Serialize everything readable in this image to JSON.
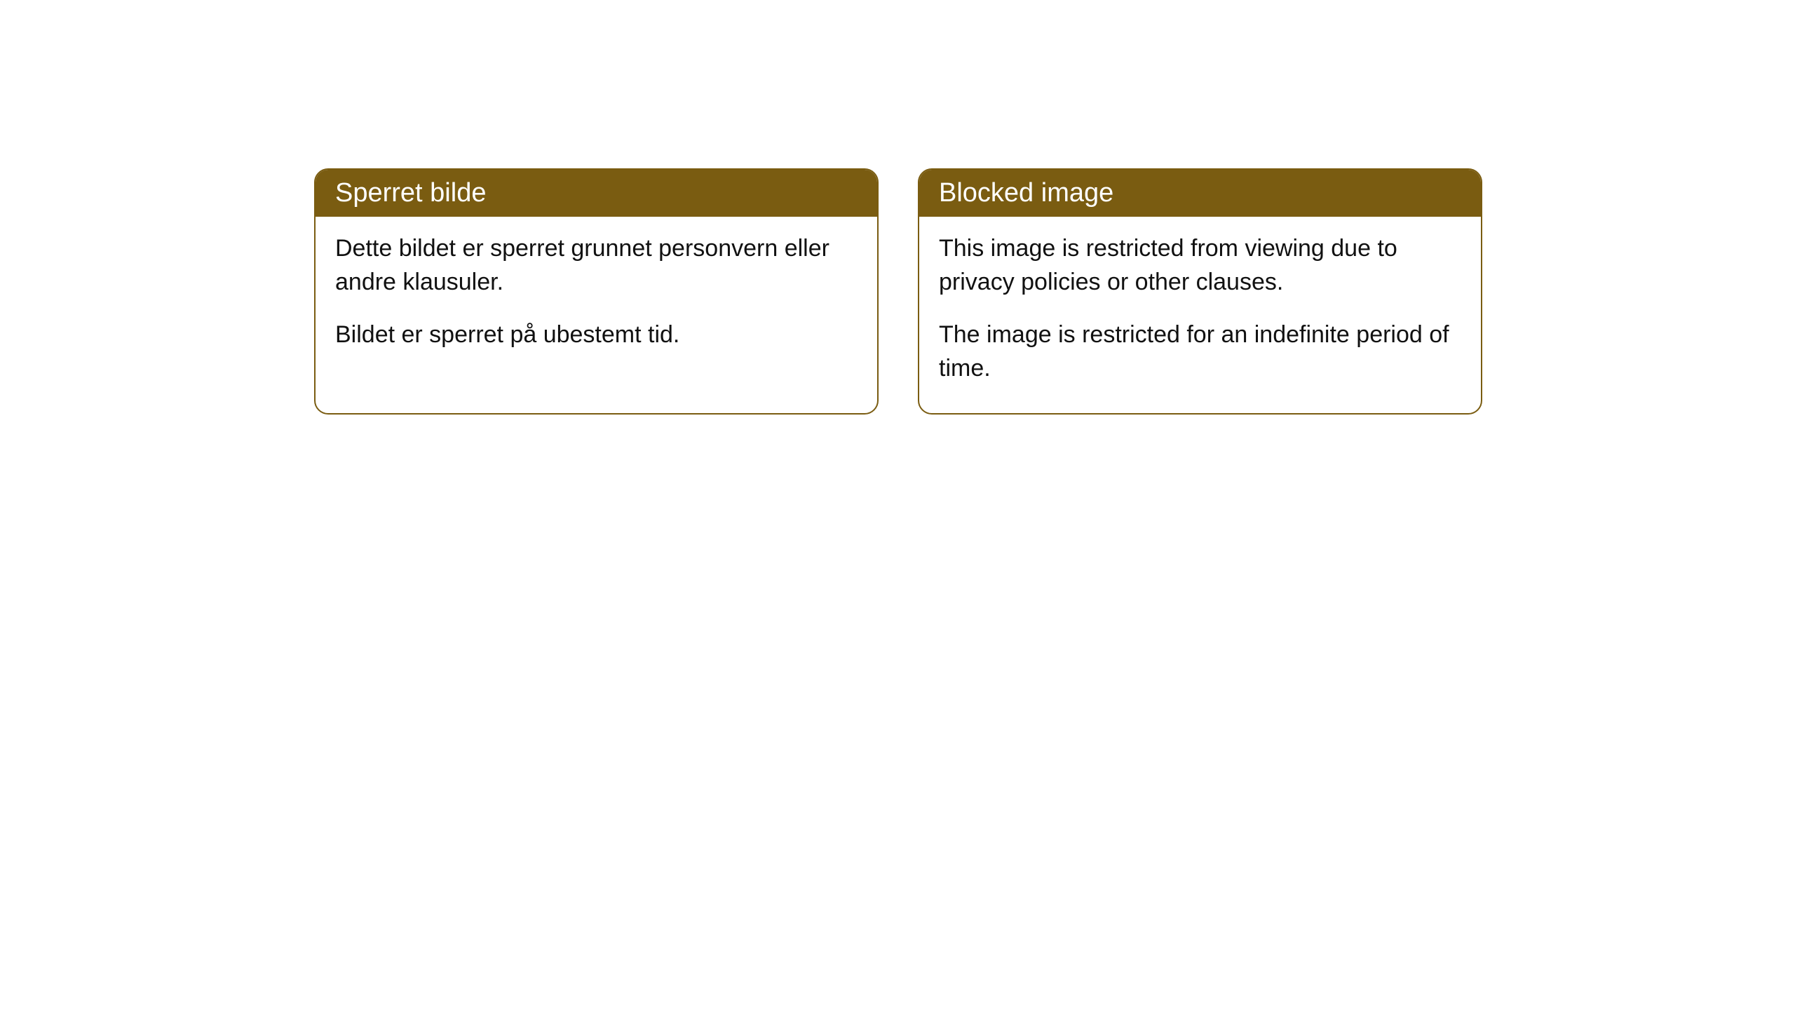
{
  "cards": [
    {
      "title": "Sperret bilde",
      "paragraph1": "Dette bildet er sperret grunnet personvern eller andre klausuler.",
      "paragraph2": "Bildet er sperret på ubestemt tid."
    },
    {
      "title": "Blocked image",
      "paragraph1": "This image is restricted from viewing due to privacy policies or other clauses.",
      "paragraph2": "The image is restricted for an indefinite period of time."
    }
  ],
  "styling": {
    "card_border_color": "#7a5c11",
    "card_header_bg": "#7a5c11",
    "card_header_text_color": "#ffffff",
    "card_body_bg": "#ffffff",
    "card_body_text_color": "#111111",
    "border_radius": 20,
    "header_fontsize": 38,
    "body_fontsize": 34
  }
}
